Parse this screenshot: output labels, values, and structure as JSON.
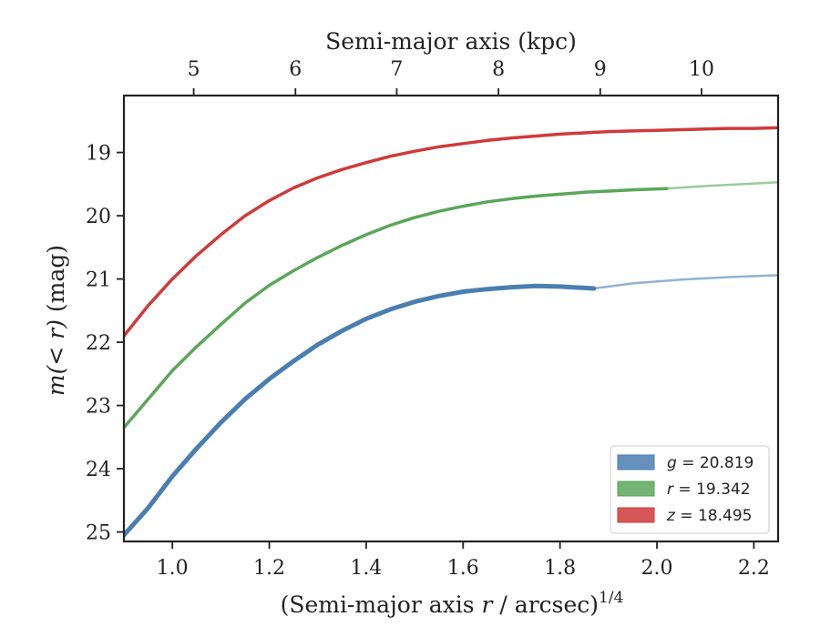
{
  "chart_data": {
    "type": "line",
    "xlabel_main": "(Semi-major axis ",
    "xlabel_var": "r",
    "xlabel_tail": " / arcsec)",
    "xlabel_exp": "1/4",
    "ylabel_pre": "m(< r)",
    "ylabel_post": " (mag)",
    "top_xlabel": "Semi-major axis (kpc)",
    "xlim": [
      0.9,
      2.25
    ],
    "ylim": [
      25.15,
      18.1
    ],
    "y_inverted": true,
    "x_ticks": [
      1.0,
      1.2,
      1.4,
      1.6,
      1.8,
      2.0,
      2.2
    ],
    "x_tick_labels": [
      "1.0",
      "1.2",
      "1.4",
      "1.6",
      "1.8",
      "2.0",
      "2.2"
    ],
    "y_ticks": [
      19,
      20,
      21,
      22,
      23,
      24,
      25
    ],
    "y_tick_labels": [
      "19",
      "20",
      "21",
      "22",
      "23",
      "24",
      "25"
    ],
    "top_ticks": [
      5,
      6,
      7,
      8,
      9,
      10
    ],
    "top_tick_labels": [
      "5",
      "6",
      "7",
      "8",
      "9",
      "10"
    ],
    "top_tick_x_positions": [
      1.044,
      1.254,
      1.463,
      1.673,
      1.883,
      2.092
    ],
    "legend_position": "lower-right",
    "series": [
      {
        "name": "g = 20.819",
        "legend_var": "g",
        "legend_value": "= 20.819",
        "color": "#4a7eb0",
        "measured_x": [
          0.9,
          0.95,
          1.0,
          1.05,
          1.1,
          1.15,
          1.2,
          1.25,
          1.3,
          1.35,
          1.4,
          1.45,
          1.5,
          1.55,
          1.6,
          1.65,
          1.7,
          1.75,
          1.8,
          1.87
        ],
        "measured_y": [
          25.05,
          24.62,
          24.12,
          23.68,
          23.27,
          22.9,
          22.58,
          22.3,
          22.04,
          21.82,
          21.63,
          21.48,
          21.36,
          21.27,
          21.2,
          21.16,
          21.13,
          21.11,
          21.12,
          21.15
        ],
        "model_x": [
          1.87,
          1.95,
          2.05,
          2.15,
          2.25
        ],
        "model_y": [
          21.15,
          21.07,
          21.01,
          20.97,
          20.94
        ]
      },
      {
        "name": "r = 19.342",
        "legend_var": "r",
        "legend_value": "= 19.342",
        "color": "#5aa65a",
        "measured_x": [
          0.9,
          0.95,
          1.0,
          1.05,
          1.1,
          1.15,
          1.2,
          1.25,
          1.3,
          1.35,
          1.4,
          1.45,
          1.5,
          1.55,
          1.6,
          1.65,
          1.7,
          1.75,
          1.8,
          1.85,
          1.9,
          1.95,
          2.02
        ],
        "measured_y": [
          23.35,
          22.9,
          22.45,
          22.07,
          21.72,
          21.38,
          21.1,
          20.87,
          20.66,
          20.47,
          20.3,
          20.15,
          20.03,
          19.93,
          19.85,
          19.78,
          19.73,
          19.69,
          19.66,
          19.63,
          19.61,
          19.59,
          19.57
        ],
        "model_x": [
          2.02,
          2.1,
          2.18,
          2.25
        ],
        "model_y": [
          19.57,
          19.53,
          19.5,
          19.47
        ]
      },
      {
        "name": "z = 18.495",
        "legend_var": "z",
        "legend_value": "= 18.495",
        "color": "#cf3a3a",
        "measured_x": [
          0.9,
          0.95,
          1.0,
          1.05,
          1.1,
          1.15,
          1.2,
          1.25,
          1.3,
          1.35,
          1.4,
          1.45,
          1.5,
          1.55,
          1.6,
          1.65,
          1.7,
          1.75,
          1.8,
          1.85,
          1.9,
          1.95,
          2.0,
          2.05,
          2.1,
          2.15,
          2.2,
          2.25
        ],
        "measured_y": [
          21.9,
          21.42,
          21.0,
          20.63,
          20.3,
          20.0,
          19.76,
          19.56,
          19.4,
          19.27,
          19.16,
          19.06,
          18.98,
          18.91,
          18.86,
          18.81,
          18.77,
          18.74,
          18.71,
          18.69,
          18.67,
          18.66,
          18.65,
          18.64,
          18.63,
          18.62,
          18.62,
          18.61
        ],
        "model_x": [],
        "model_y": []
      }
    ]
  }
}
